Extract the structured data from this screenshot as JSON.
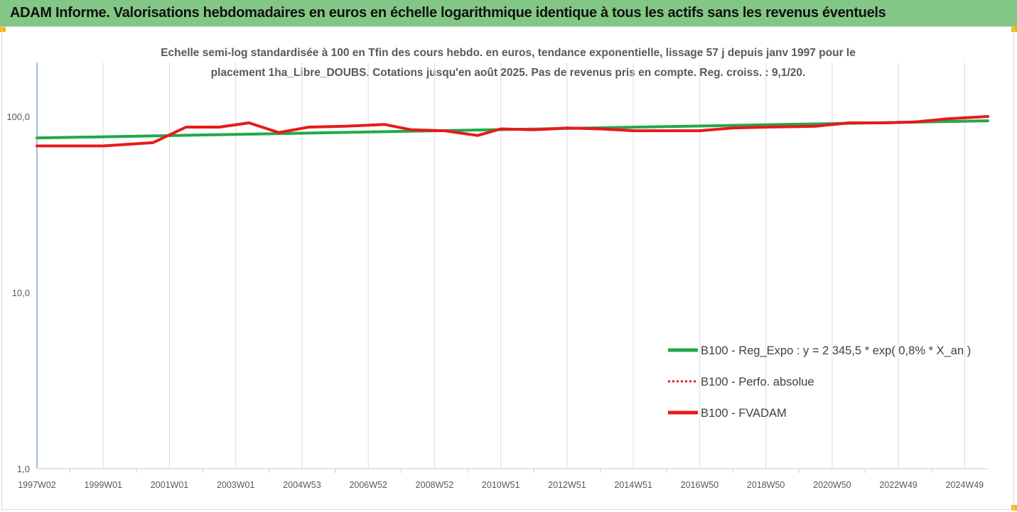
{
  "header": {
    "title": "ADAM Informe. Valorisations hebdomadaires en euros en échelle logarithmique identique à tous les actifs sans les revenus éventuels"
  },
  "chart_data": {
    "type": "line",
    "title_line1": "Echelle semi-log standardisée à 100 en Tfin des cours hebdo. en euros, tendance exponentielle, lissage 57 j depuis janv 1997 pour le",
    "title_line2": "placement 1ha_Libre_DOUBS. Cotations jusqu'en août 2025. Pas de revenus pris en compte. Reg. croiss. : 9,1/20.",
    "y_scale": "log",
    "ylim": [
      1,
      200
    ],
    "y_ticks": [
      1,
      10,
      100
    ],
    "y_tick_labels": [
      "1,0",
      "10,0",
      "100,0"
    ],
    "x_tick_labels": [
      "1997W02",
      "1999W01",
      "2001W01",
      "2003W01",
      "2004W53",
      "2006W52",
      "2008W52",
      "2010W51",
      "2012W51",
      "2014W51",
      "2016W50",
      "2018W50",
      "2020W50",
      "2022W49",
      "2024W49"
    ],
    "x_tick_years": [
      1997.0,
      1999.0,
      2001.0,
      2003.0,
      2005.0,
      2007.0,
      2009.0,
      2011.0,
      2013.0,
      2015.0,
      2017.0,
      2019.0,
      2021.0,
      2023.0,
      2025.0
    ],
    "xlim": [
      1997.0,
      2025.7
    ],
    "grid": "vertical",
    "legend_position": "right",
    "series": [
      {
        "name": "B100 - Reg_Expo : y = 2 345,5 * exp( 0,8% *  X_an )",
        "color": "#22a84a",
        "style": "solid",
        "points": [
          [
            1997.0,
            75.5
          ],
          [
            2025.7,
            94.5
          ]
        ]
      },
      {
        "name": "B100 - Perfo. absolue",
        "color": "#e8191b",
        "style": "dotted",
        "points": []
      },
      {
        "name": "B100 - FVADAM",
        "color": "#e8191b",
        "style": "solid",
        "points": [
          [
            1997.0,
            68
          ],
          [
            1999.0,
            68
          ],
          [
            2000.5,
            71
          ],
          [
            2001.5,
            87
          ],
          [
            2002.5,
            87
          ],
          [
            2003.4,
            92
          ],
          [
            2004.3,
            81
          ],
          [
            2005.2,
            87
          ],
          [
            2006.3,
            88
          ],
          [
            2007.5,
            90
          ],
          [
            2008.3,
            84
          ],
          [
            2009.3,
            83
          ],
          [
            2010.3,
            78
          ],
          [
            2011.0,
            85
          ],
          [
            2012.0,
            84
          ],
          [
            2013.0,
            86
          ],
          [
            2014.0,
            85
          ],
          [
            2015.0,
            83
          ],
          [
            2016.0,
            83
          ],
          [
            2017.0,
            83
          ],
          [
            2018.0,
            86
          ],
          [
            2019.0,
            87
          ],
          [
            2020.5,
            88
          ],
          [
            2021.5,
            92
          ],
          [
            2022.5,
            92
          ],
          [
            2023.5,
            93
          ],
          [
            2024.5,
            97
          ],
          [
            2025.7,
            100
          ]
        ]
      }
    ]
  }
}
